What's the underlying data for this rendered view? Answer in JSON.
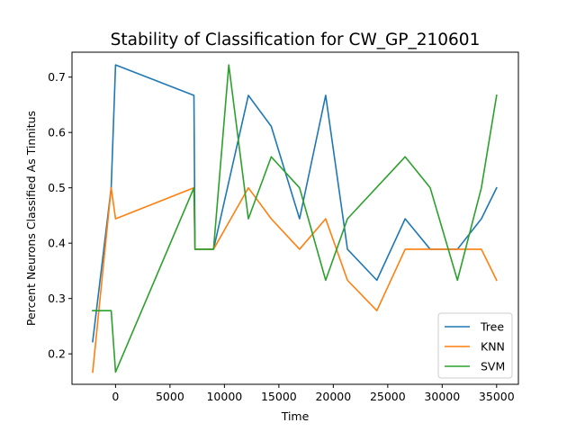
{
  "chart_data": {
    "type": "line",
    "title": "Stability of Classification for CW_GP_210601",
    "xlabel": "Time",
    "ylabel": "Percent Neurons Classified As Tinnitus",
    "xlim": [
      -4000,
      37000
    ],
    "ylim": [
      0.145,
      0.745
    ],
    "xticks": [
      0,
      5000,
      10000,
      15000,
      20000,
      25000,
      30000,
      35000
    ],
    "yticks": [
      0.2,
      0.3,
      0.4,
      0.5,
      0.6,
      0.7
    ],
    "xtick_labels": [
      "0",
      "5000",
      "10000",
      "15000",
      "20000",
      "25000",
      "30000",
      "35000"
    ],
    "ytick_labels": [
      "0.2",
      "0.3",
      "0.4",
      "0.5",
      "0.6",
      "0.7"
    ],
    "grid": false,
    "legend_position": "lower right",
    "series": [
      {
        "name": "Tree",
        "color": "#1f77b4",
        "points": [
          [
            -2100,
            0.222
          ],
          [
            -400,
            0.5
          ],
          [
            0,
            0.722
          ],
          [
            7200,
            0.667
          ],
          [
            7300,
            0.389
          ],
          [
            9000,
            0.389
          ],
          [
            12200,
            0.667
          ],
          [
            14300,
            0.611
          ],
          [
            16900,
            0.444
          ],
          [
            19300,
            0.667
          ],
          [
            21300,
            0.389
          ],
          [
            24000,
            0.333
          ],
          [
            26600,
            0.444
          ],
          [
            28900,
            0.389
          ],
          [
            31400,
            0.389
          ],
          [
            33600,
            0.444
          ],
          [
            35000,
            0.5
          ]
        ]
      },
      {
        "name": "KNN",
        "color": "#ff7f0e",
        "points": [
          [
            -2100,
            0.167
          ],
          [
            -400,
            0.5
          ],
          [
            0,
            0.444
          ],
          [
            7200,
            0.5
          ],
          [
            7300,
            0.389
          ],
          [
            9000,
            0.389
          ],
          [
            12200,
            0.5
          ],
          [
            14300,
            0.444
          ],
          [
            16900,
            0.389
          ],
          [
            19300,
            0.444
          ],
          [
            21300,
            0.333
          ],
          [
            24000,
            0.278
          ],
          [
            26600,
            0.389
          ],
          [
            28900,
            0.389
          ],
          [
            31400,
            0.389
          ],
          [
            33600,
            0.389
          ],
          [
            35000,
            0.333
          ]
        ]
      },
      {
        "name": "SVM",
        "color": "#2ca02c",
        "points": [
          [
            -2100,
            0.278
          ],
          [
            -400,
            0.278
          ],
          [
            0,
            0.167
          ],
          [
            7200,
            0.5
          ],
          [
            7300,
            0.389
          ],
          [
            9000,
            0.389
          ],
          [
            10400,
            0.722
          ],
          [
            12200,
            0.444
          ],
          [
            14300,
            0.556
          ],
          [
            16900,
            0.5
          ],
          [
            19300,
            0.333
          ],
          [
            21300,
            0.444
          ],
          [
            26600,
            0.556
          ],
          [
            28900,
            0.5
          ],
          [
            31400,
            0.333
          ],
          [
            33600,
            0.5
          ],
          [
            35000,
            0.667
          ]
        ]
      }
    ]
  }
}
